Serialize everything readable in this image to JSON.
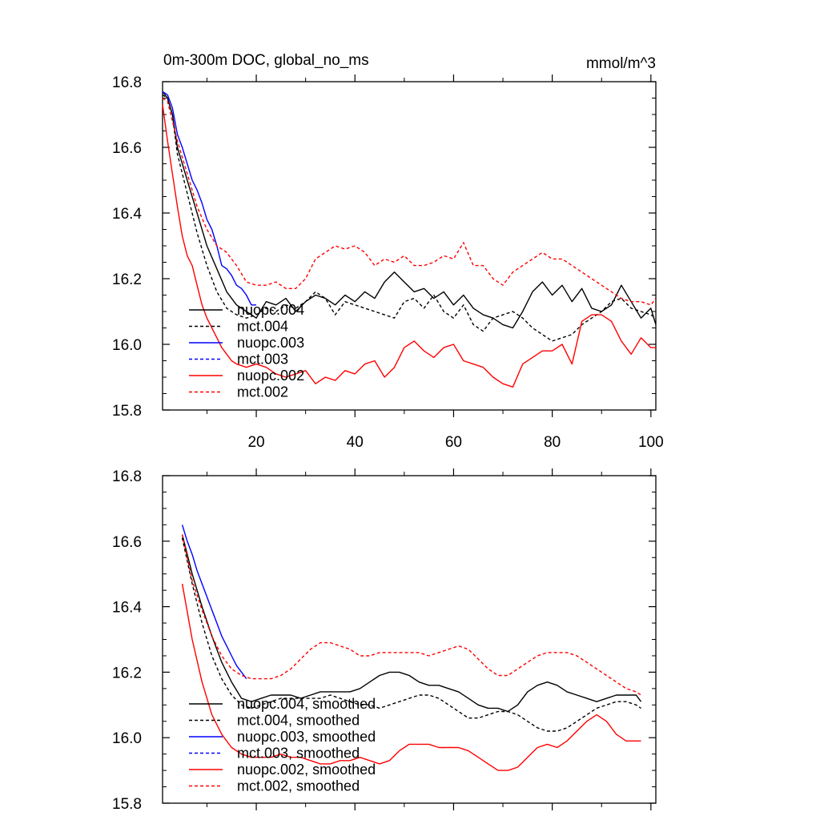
{
  "figure": {
    "title_left": "0m-300m DOC, global_no_ms",
    "title_right": "mmol/m^3"
  },
  "colors": {
    "black": "#000000",
    "blue": "#0000ff",
    "red": "#ff0000"
  },
  "chart_data": [
    {
      "type": "line",
      "title": "0m-300m DOC, global_no_ms",
      "units_label": "mmol/m^3",
      "xlabel": "",
      "ylabel": "",
      "xlim": [
        1,
        101
      ],
      "ylim": [
        15.8,
        16.8
      ],
      "xticks": [
        20,
        40,
        60,
        80,
        100
      ],
      "yticks": [
        15.8,
        16.0,
        16.2,
        16.4,
        16.6,
        16.8
      ],
      "ytick_labels": [
        "15.8",
        "16.0",
        "16.2",
        "16.4",
        "16.6",
        "16.8"
      ],
      "xtick_labels": [
        "20",
        "40",
        "60",
        "80",
        "100"
      ],
      "legend_position": "lower-left",
      "series": [
        {
          "name": "nuopc.004",
          "color": "#000000",
          "dash": "solid",
          "x": [
            1,
            2,
            3,
            4,
            6,
            8,
            10,
            12,
            14,
            16,
            18,
            20,
            22,
            24,
            26,
            28,
            30,
            32,
            34,
            36,
            38,
            40,
            42,
            44,
            46,
            48,
            50,
            52,
            54,
            56,
            58,
            60,
            62,
            64,
            66,
            68,
            70,
            72,
            74,
            76,
            78,
            80,
            82,
            84,
            86,
            88,
            90,
            92,
            94,
            96,
            98,
            100,
            101
          ],
          "y": [
            16.77,
            16.75,
            16.7,
            16.6,
            16.5,
            16.4,
            16.3,
            16.23,
            16.16,
            16.12,
            16.1,
            16.08,
            16.13,
            16.12,
            16.14,
            16.1,
            16.13,
            16.15,
            16.14,
            16.12,
            16.15,
            16.13,
            16.16,
            16.14,
            16.19,
            16.22,
            16.19,
            16.16,
            16.17,
            16.14,
            16.16,
            16.12,
            16.15,
            16.11,
            16.09,
            16.08,
            16.06,
            16.05,
            16.1,
            16.16,
            16.19,
            16.15,
            16.18,
            16.13,
            16.17,
            16.11,
            16.1,
            16.12,
            16.18,
            16.13,
            16.08,
            16.11,
            16.06
          ]
        },
        {
          "name": "mct.004",
          "color": "#000000",
          "dash": "dashed",
          "x": [
            1,
            2,
            3,
            4,
            6,
            8,
            10,
            12,
            14,
            16,
            18,
            20,
            22,
            24,
            26,
            28,
            30,
            32,
            34,
            36,
            38,
            40,
            42,
            44,
            46,
            48,
            50,
            52,
            54,
            56,
            58,
            60,
            62,
            64,
            66,
            68,
            70,
            72,
            74,
            76,
            78,
            80,
            82,
            84,
            86,
            88,
            90,
            92,
            94,
            96,
            98,
            100,
            101
          ],
          "y": [
            16.76,
            16.75,
            16.7,
            16.58,
            16.46,
            16.34,
            16.24,
            16.16,
            16.11,
            16.09,
            16.08,
            16.09,
            16.11,
            16.1,
            16.12,
            16.11,
            16.13,
            16.16,
            16.14,
            16.09,
            16.13,
            16.12,
            16.11,
            16.1,
            16.09,
            16.08,
            16.13,
            16.14,
            16.11,
            16.15,
            16.1,
            16.08,
            16.12,
            16.06,
            16.04,
            16.08,
            16.09,
            16.1,
            16.08,
            16.05,
            16.03,
            16.01,
            16.02,
            16.03,
            16.06,
            16.08,
            16.1,
            16.13,
            16.14,
            16.11,
            16.1,
            16.09,
            16.08
          ]
        },
        {
          "name": "nuopc.003",
          "color": "#0000ff",
          "dash": "solid",
          "x": [
            1,
            2,
            3,
            4,
            5,
            6,
            7,
            8,
            9,
            10,
            11,
            12,
            13,
            14,
            15,
            16,
            17,
            18,
            19,
            20
          ],
          "y": [
            16.77,
            16.76,
            16.72,
            16.64,
            16.6,
            16.55,
            16.5,
            16.47,
            16.43,
            16.38,
            16.35,
            16.3,
            16.24,
            16.23,
            16.21,
            16.18,
            16.17,
            16.15,
            16.12,
            16.12
          ]
        },
        {
          "name": "mct.003",
          "color": "#0000ff",
          "dash": "dashed",
          "x": [],
          "y": []
        },
        {
          "name": "nuopc.002",
          "color": "#ff0000",
          "dash": "solid",
          "x": [
            1,
            2,
            3,
            4,
            5,
            6,
            7,
            8,
            9,
            10,
            11,
            12,
            13,
            14,
            15,
            16,
            18,
            20,
            22,
            24,
            26,
            28,
            30,
            32,
            34,
            36,
            38,
            40,
            42,
            44,
            46,
            48,
            50,
            52,
            54,
            56,
            58,
            60,
            62,
            64,
            66,
            68,
            70,
            72,
            74,
            76,
            78,
            80,
            82,
            84,
            86,
            88,
            90,
            92,
            94,
            96,
            98,
            100,
            101
          ],
          "y": [
            16.73,
            16.62,
            16.52,
            16.42,
            16.33,
            16.27,
            16.24,
            16.18,
            16.12,
            16.08,
            16.05,
            16.02,
            15.99,
            15.97,
            15.95,
            15.94,
            15.93,
            15.94,
            15.93,
            15.91,
            15.9,
            15.91,
            15.92,
            15.88,
            15.9,
            15.89,
            15.92,
            15.91,
            15.94,
            15.95,
            15.9,
            15.93,
            15.99,
            16.01,
            15.98,
            15.96,
            15.99,
            16.0,
            15.95,
            15.94,
            15.93,
            15.9,
            15.88,
            15.87,
            15.94,
            15.96,
            15.98,
            15.98,
            16.0,
            15.94,
            16.07,
            16.09,
            16.09,
            16.07,
            16.01,
            15.97,
            16.02,
            15.99,
            15.99
          ]
        },
        {
          "name": "mct.002",
          "color": "#ff0000",
          "dash": "dashed",
          "x": [
            1,
            2,
            3,
            4,
            6,
            8,
            10,
            12,
            14,
            16,
            18,
            20,
            22,
            24,
            26,
            28,
            30,
            32,
            34,
            36,
            38,
            40,
            42,
            44,
            46,
            48,
            50,
            52,
            54,
            56,
            58,
            60,
            62,
            64,
            66,
            68,
            70,
            72,
            74,
            76,
            78,
            80,
            82,
            84,
            86,
            88,
            90,
            92,
            94,
            96,
            98,
            100,
            101
          ],
          "y": [
            16.75,
            16.74,
            16.68,
            16.62,
            16.52,
            16.42,
            16.35,
            16.3,
            16.28,
            16.24,
            16.19,
            16.18,
            16.18,
            16.19,
            16.17,
            16.17,
            16.2,
            16.26,
            16.28,
            16.3,
            16.29,
            16.3,
            16.28,
            16.24,
            16.26,
            16.25,
            16.27,
            16.24,
            16.24,
            16.25,
            16.27,
            16.26,
            16.31,
            16.24,
            16.24,
            16.2,
            16.18,
            16.22,
            16.24,
            16.26,
            16.28,
            16.26,
            16.26,
            16.24,
            16.22,
            16.2,
            16.18,
            16.16,
            16.14,
            16.13,
            16.13,
            16.12,
            16.14
          ]
        }
      ]
    },
    {
      "type": "line",
      "title": "",
      "xlabel": "",
      "ylabel": "",
      "xlim": [
        1,
        101
      ],
      "ylim": [
        15.8,
        16.8
      ],
      "xticks": [
        20,
        40,
        60,
        80,
        100
      ],
      "yticks": [
        15.8,
        16.0,
        16.2,
        16.4,
        16.6,
        16.8
      ],
      "ytick_labels": [
        "15.8",
        "16.0",
        "16.2",
        "16.4",
        "16.6",
        "16.8"
      ],
      "legend_position": "lower-left",
      "series": [
        {
          "name": "nuopc.004, smoothed",
          "color": "#000000",
          "dash": "solid",
          "x": [
            5,
            7,
            9,
            11,
            13,
            15,
            17,
            19,
            21,
            23,
            25,
            27,
            29,
            31,
            33,
            35,
            37,
            39,
            41,
            43,
            45,
            47,
            49,
            51,
            53,
            55,
            57,
            59,
            61,
            63,
            65,
            67,
            69,
            71,
            73,
            75,
            77,
            79,
            81,
            83,
            85,
            87,
            89,
            91,
            93,
            95,
            97,
            98
          ],
          "y": [
            16.62,
            16.5,
            16.4,
            16.31,
            16.23,
            16.17,
            16.12,
            16.11,
            16.12,
            16.13,
            16.13,
            16.13,
            16.12,
            16.13,
            16.14,
            16.14,
            16.14,
            16.14,
            16.15,
            16.17,
            16.19,
            16.2,
            16.2,
            16.19,
            16.17,
            16.16,
            16.16,
            16.15,
            16.14,
            16.12,
            16.1,
            16.09,
            16.09,
            16.08,
            16.1,
            16.14,
            16.16,
            16.17,
            16.16,
            16.14,
            16.13,
            16.12,
            16.11,
            16.12,
            16.13,
            16.13,
            16.13,
            16.11
          ]
        },
        {
          "name": "mct.004, smoothed",
          "color": "#000000",
          "dash": "dashed",
          "x": [
            5,
            7,
            9,
            11,
            13,
            15,
            17,
            19,
            21,
            23,
            25,
            27,
            29,
            31,
            33,
            35,
            37,
            39,
            41,
            43,
            45,
            47,
            49,
            51,
            53,
            55,
            57,
            59,
            61,
            63,
            65,
            67,
            69,
            71,
            73,
            75,
            77,
            79,
            81,
            83,
            85,
            87,
            89,
            91,
            93,
            95,
            97,
            98
          ],
          "y": [
            16.61,
            16.47,
            16.35,
            16.25,
            16.18,
            16.13,
            16.1,
            16.09,
            16.1,
            16.11,
            16.12,
            16.12,
            16.12,
            16.12,
            16.12,
            16.13,
            16.12,
            16.11,
            16.1,
            16.1,
            16.09,
            16.1,
            16.11,
            16.12,
            16.13,
            16.13,
            16.12,
            16.1,
            16.08,
            16.06,
            16.06,
            16.07,
            16.08,
            16.08,
            16.07,
            16.05,
            16.03,
            16.02,
            16.02,
            16.03,
            16.05,
            16.07,
            16.09,
            16.1,
            16.11,
            16.11,
            16.1,
            16.09
          ]
        },
        {
          "name": "nuopc.003, smoothed",
          "color": "#0000ff",
          "dash": "solid",
          "x": [
            5,
            6,
            7,
            8,
            9,
            10,
            11,
            12,
            13,
            14,
            15,
            16,
            17,
            18
          ],
          "y": [
            16.65,
            16.6,
            16.56,
            16.51,
            16.47,
            16.43,
            16.39,
            16.35,
            16.31,
            16.28,
            16.25,
            16.22,
            16.2,
            16.18
          ]
        },
        {
          "name": "mct.003, smoothed",
          "color": "#0000ff",
          "dash": "dashed",
          "x": [],
          "y": []
        },
        {
          "name": "nuopc.002, smoothed",
          "color": "#ff0000",
          "dash": "solid",
          "x": [
            5,
            7,
            9,
            11,
            13,
            15,
            17,
            19,
            21,
            23,
            25,
            27,
            29,
            31,
            33,
            35,
            37,
            39,
            41,
            43,
            45,
            47,
            49,
            51,
            53,
            55,
            57,
            59,
            61,
            63,
            65,
            67,
            69,
            71,
            73,
            75,
            77,
            79,
            81,
            83,
            85,
            87,
            89,
            91,
            93,
            95,
            97,
            98
          ],
          "y": [
            16.47,
            16.3,
            16.17,
            16.07,
            16.01,
            15.97,
            15.95,
            15.94,
            15.94,
            15.94,
            15.95,
            15.94,
            15.94,
            15.93,
            15.92,
            15.92,
            15.93,
            15.93,
            15.94,
            15.93,
            15.92,
            15.93,
            15.96,
            15.98,
            15.98,
            15.98,
            15.97,
            15.97,
            15.97,
            15.96,
            15.94,
            15.92,
            15.9,
            15.9,
            15.91,
            15.94,
            15.97,
            15.98,
            15.97,
            15.99,
            16.02,
            16.05,
            16.07,
            16.05,
            16.01,
            15.99,
            15.99,
            15.99
          ]
        },
        {
          "name": "mct.002, smoothed",
          "color": "#ff0000",
          "dash": "dashed",
          "x": [
            5,
            7,
            9,
            11,
            13,
            15,
            17,
            19,
            21,
            23,
            25,
            27,
            29,
            31,
            33,
            35,
            37,
            39,
            41,
            43,
            45,
            47,
            49,
            51,
            53,
            55,
            57,
            59,
            61,
            63,
            65,
            67,
            69,
            71,
            73,
            75,
            77,
            79,
            81,
            83,
            85,
            87,
            89,
            91,
            93,
            95,
            97,
            98
          ],
          "y": [
            16.62,
            16.48,
            16.39,
            16.31,
            16.25,
            16.21,
            16.19,
            16.18,
            16.18,
            16.18,
            16.19,
            16.21,
            16.24,
            16.27,
            16.29,
            16.29,
            16.28,
            16.27,
            16.25,
            16.25,
            16.26,
            16.26,
            16.26,
            16.26,
            16.26,
            16.25,
            16.26,
            16.27,
            16.28,
            16.27,
            16.24,
            16.21,
            16.19,
            16.19,
            16.21,
            16.23,
            16.25,
            16.26,
            16.26,
            16.26,
            16.25,
            16.23,
            16.21,
            16.19,
            16.17,
            16.15,
            16.14,
            16.13
          ]
        }
      ]
    }
  ]
}
